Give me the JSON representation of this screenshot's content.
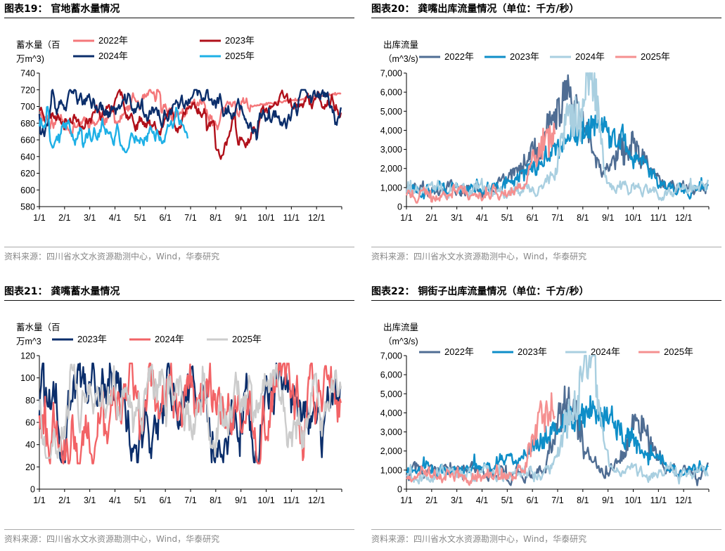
{
  "panels": [
    {
      "id": "p1",
      "title": "图表19：  官地蓄水量情况",
      "source": "资料来源：四川省水文水资源勘测中心，Wind，华泰研究",
      "chart_data": {
        "type": "line",
        "title": "图表19：  官地蓄水量情况",
        "ylabel_lines": [
          "蓄水量（百",
          "万m^3)"
        ],
        "ylim": [
          580,
          740
        ],
        "yticks": [
          580,
          600,
          620,
          640,
          660,
          680,
          700,
          720,
          740
        ],
        "categories": [
          "1/1",
          "2/1",
          "3/1",
          "4/1",
          "5/1",
          "6/1",
          "7/1",
          "8/1",
          "9/1",
          "10/1",
          "11/1",
          "12/1"
        ],
        "legend_layout": "two-column",
        "series": [
          {
            "name": "2022年",
            "color": "#f4777a",
            "params": {
              "base": 695,
              "amp": 12,
              "min": 655,
              "max": 720,
              "seed": 11,
              "days": 365,
              "noise": 0.55,
              "rev": 0.25,
              "tailTo": 716
            }
          },
          {
            "name": "2023年",
            "color": "#b0101a",
            "params": {
              "base": 698,
              "amp": 12,
              "min": 637,
              "max": 720,
              "seed": 23,
              "days": 365,
              "noise": 0.55,
              "rev": 0.22,
              "dips": [
                [
                  215,
                  637
                ],
                [
                  240,
                  648
                ]
              ]
            }
          },
          {
            "name": "2024年",
            "color": "#0b2e6b",
            "params": {
              "base": 695,
              "amp": 13,
              "min": 658,
              "max": 720,
              "seed": 37,
              "days": 365,
              "noise": 0.6,
              "rev": 0.22
            }
          },
          {
            "name": "2025年",
            "color": "#1eb0e6",
            "params": {
              "base": 680,
              "amp": 13,
              "min": 645,
              "max": 715,
              "seed": 41,
              "days": 180,
              "noise": 0.6,
              "rev": 0.25,
              "dips": [
                [
                  15,
                  650
                ],
                [
                  100,
                  645
                ]
              ]
            }
          }
        ]
      }
    },
    {
      "id": "p2",
      "title": "图表20：  龚嘴出库流量情况（单位：千方/秒）",
      "source": "资料来源：四川省水文水资源勘测中心，Wind，华泰研究",
      "chart_data": {
        "type": "line",
        "title": "图表20：  龚嘴出库流量情况（单位：千方/秒）",
        "ylabel_lines": [
          "出库流量",
          "（m^3/s)"
        ],
        "ylim": [
          0,
          7000
        ],
        "yticks": [
          0,
          1000,
          2000,
          3000,
          4000,
          5000,
          6000,
          7000
        ],
        "categories": [
          "1/1",
          "2/1",
          "3/1",
          "4/1",
          "5/1",
          "6/1",
          "7/1",
          "8/1",
          "9/1",
          "10/1",
          "11/1",
          "12/1"
        ],
        "legend_layout": "one-row",
        "series": [
          {
            "name": "2022年",
            "color": "#4f6d93",
            "params": {
              "flow": true,
              "seed": 51,
              "days": 365,
              "peaks": [
                [
                  175,
                  2400,
                  40
                ],
                [
                  200,
                  3800,
                  25
                ],
                [
                  270,
                  2800,
                  25
                ]
              ],
              "base": 900
            }
          },
          {
            "name": "2023年",
            "color": "#0e8ec8",
            "params": {
              "flow": true,
              "seed": 63,
              "days": 365,
              "peaks": [
                [
                  190,
                  1600,
                  60
                ],
                [
                  240,
                  2600,
                  50
                ]
              ],
              "base": 950
            }
          },
          {
            "name": "2024年",
            "color": "#a9cfe0",
            "params": {
              "flow": true,
              "seed": 77,
              "days": 365,
              "peaks": [
                [
                  200,
                  4000,
                  20
                ],
                [
                  225,
                  5800,
                  12
                ]
              ],
              "base": 850
            }
          },
          {
            "name": "2025年",
            "color": "#f59090",
            "params": {
              "flow": true,
              "seed": 89,
              "days": 180,
              "peaks": [
                [
                  165,
                  2800,
                  20
                ],
                [
                  195,
                  3700,
                  18
                ]
              ],
              "base": 700
            }
          }
        ]
      }
    },
    {
      "id": "p3",
      "title": "图表21：  龚嘴蓄水量情况",
      "source": "资料来源：四川省水文水资源勘测中心，Wind，华泰研究",
      "chart_data": {
        "type": "line",
        "title": "图表21：  龚嘴蓄水量情况",
        "ylabel_lines": [
          "蓄水量（百",
          "万m^3"
        ],
        "ylim": [
          0,
          120
        ],
        "yticks": [
          0,
          20,
          40,
          60,
          80,
          100,
          120
        ],
        "categories": [
          "1/1",
          "2/1",
          "3/1",
          "4/1",
          "5/1",
          "6/1",
          "7/1",
          "8/1",
          "9/1",
          "10/1",
          "11/1",
          "12/1"
        ],
        "legend_layout": "one-row",
        "series": [
          {
            "name": "2023年",
            "color": "#0b2e6b",
            "params": {
              "base": 75,
              "amp": 22,
              "min": 24,
              "max": 113,
              "seed": 101,
              "days": 365,
              "noise": 0.9,
              "rev": 0.15
            }
          },
          {
            "name": "2024年",
            "color": "#f26366",
            "params": {
              "base": 75,
              "amp": 22,
              "min": 23,
              "max": 113,
              "seed": 113,
              "days": 365,
              "noise": 0.9,
              "rev": 0.15
            }
          },
          {
            "name": "2025年",
            "color": "#cccccc",
            "params": {
              "base": 78,
              "amp": 18,
              "min": 28,
              "max": 112,
              "seed": 127,
              "days": 365,
              "noise": 0.9,
              "rev": 0.15
            }
          }
        ]
      }
    },
    {
      "id": "p4",
      "title": "图表22：  铜街子出库流量情况（单位：千方/秒）",
      "source": "资料来源：四川省水文水资源勘测中心，Wind，华泰研究",
      "chart_data": {
        "type": "line",
        "title": "图表22：  铜街子出库流量情况（单位：千方/秒）",
        "ylabel_lines": [
          "出库流量",
          "（m^3/s)"
        ],
        "ylim": [
          0,
          7000
        ],
        "yticks": [
          0,
          1000,
          2000,
          3000,
          4000,
          5000,
          6000,
          7000
        ],
        "categories": [
          "1/1",
          "2/1",
          "3/1",
          "4/1",
          "5/1",
          "6/1",
          "7/1",
          "8/1",
          "9/1",
          "10/1",
          "11/1",
          "12/1"
        ],
        "legend_layout": "one-row",
        "series": [
          {
            "name": "2022年",
            "color": "#4f6d93",
            "params": {
              "flow": true,
              "seed": 151,
              "days": 365,
              "peaks": [
                [
                  195,
                  4000,
                  20
                ],
                [
                  280,
                  2800,
                  20
                ]
              ],
              "base": 900
            }
          },
          {
            "name": "2023年",
            "color": "#0e8ec8",
            "params": {
              "flow": true,
              "seed": 163,
              "days": 365,
              "peaks": [
                [
                  190,
                  1700,
                  60
                ],
                [
                  240,
                  2400,
                  50
                ]
              ],
              "base": 950
            }
          },
          {
            "name": "2024年",
            "color": "#a9cfe0",
            "params": {
              "flow": true,
              "seed": 177,
              "days": 365,
              "peaks": [
                [
                  205,
                  4200,
                  20
                ],
                [
                  225,
                  5800,
                  12
                ]
              ],
              "base": 850
            }
          },
          {
            "name": "2025年",
            "color": "#f59090",
            "params": {
              "flow": true,
              "seed": 189,
              "days": 180,
              "peaks": [
                [
                  165,
                  3100,
                  20
                ],
                [
                  195,
                  3900,
                  18
                ]
              ],
              "base": 700
            }
          }
        ]
      }
    }
  ]
}
